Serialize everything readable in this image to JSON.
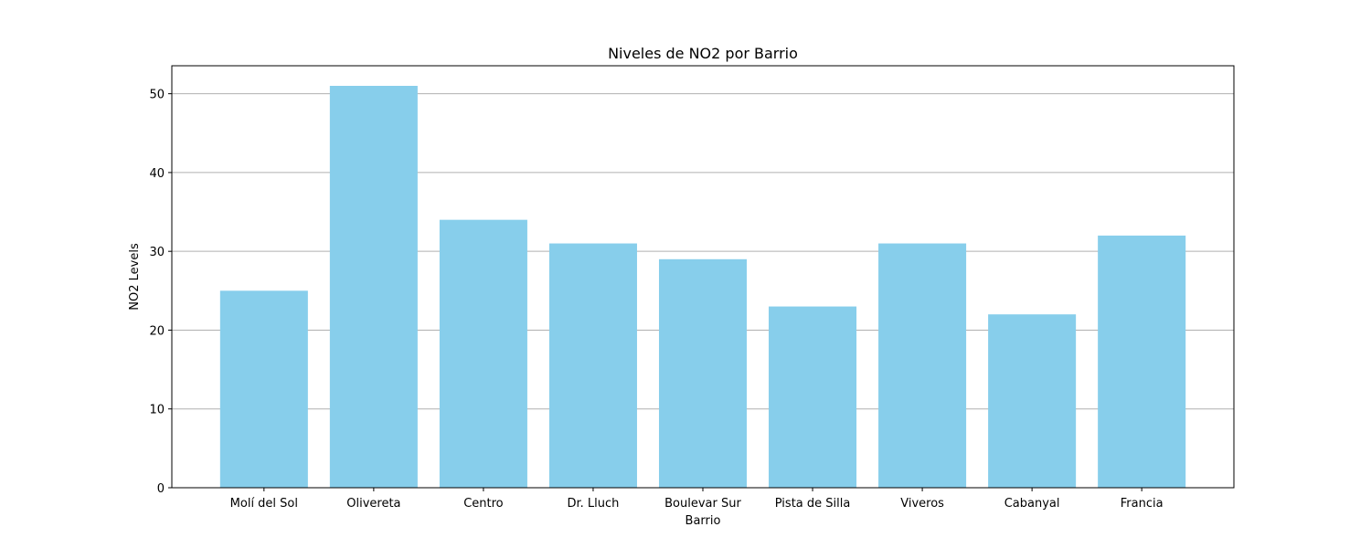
{
  "chart_data": {
    "type": "bar",
    "title": "Niveles de NO2 por Barrio",
    "xlabel": "Barrio",
    "ylabel": "NO2 Levels",
    "categories": [
      "Molí del Sol",
      "Olivereta",
      "Centro",
      "Dr. Lluch",
      "Boulevar Sur",
      "Pista de Silla",
      "Viveros",
      "Cabanyal",
      "Francia"
    ],
    "values": [
      25,
      51,
      34,
      31,
      29,
      23,
      31,
      22,
      32
    ],
    "ylim": [
      0,
      53.55
    ],
    "yticks": [
      0,
      10,
      20,
      30,
      40,
      50
    ],
    "grid": "y-major",
    "legend": "none",
    "colors": {
      "bar": "#87CEEB",
      "grid": "#b0b0b0",
      "axis": "#000000",
      "background": "#ffffff"
    }
  }
}
